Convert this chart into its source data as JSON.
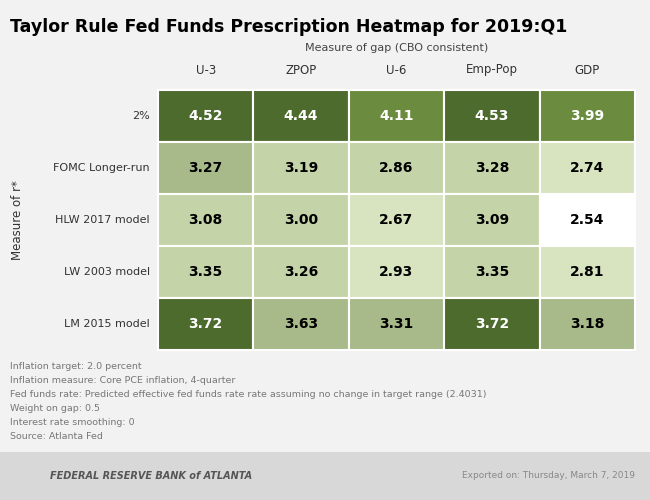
{
  "title": "Taylor Rule Fed Funds Prescription Heatmap for 2019:Q1",
  "col_header_label": "Measure of gap (CBO consistent)",
  "row_header_label": "Measure of r*",
  "columns": [
    "U-3",
    "ZPOP",
    "U-6",
    "Emp-Pop",
    "GDP"
  ],
  "rows": [
    "2%",
    "FOMC Longer-run",
    "HLW 2017 model",
    "LW 2003 model",
    "LM 2015 model"
  ],
  "values": [
    [
      4.52,
      4.44,
      4.11,
      4.53,
      3.99
    ],
    [
      3.27,
      3.19,
      2.86,
      3.28,
      2.74
    ],
    [
      3.08,
      3.0,
      2.67,
      3.09,
      2.54
    ],
    [
      3.35,
      3.26,
      2.93,
      3.35,
      2.81
    ],
    [
      3.72,
      3.63,
      3.31,
      3.72,
      3.18
    ]
  ],
  "cell_colors": [
    [
      "#4e6b2e",
      "#4e6b2e",
      "#6b8c3e",
      "#4e6b2e",
      "#6b8c3e"
    ],
    [
      "#a8ba8a",
      "#c5d4a8",
      "#c5d4a8",
      "#c5d4a8",
      "#d8e4c0"
    ],
    [
      "#c5d4a8",
      "#c5d4a8",
      "#d8e4c0",
      "#c5d4a8",
      "#ffffff"
    ],
    [
      "#c5d4a8",
      "#c5d4a8",
      "#d8e4c0",
      "#c5d4a8",
      "#d8e4c0"
    ],
    [
      "#4e6b2e",
      "#a8ba8a",
      "#a8ba8a",
      "#4e6b2e",
      "#a8ba8a"
    ]
  ],
  "text_colors": [
    [
      "#ffffff",
      "#ffffff",
      "#ffffff",
      "#ffffff",
      "#ffffff"
    ],
    [
      "#000000",
      "#000000",
      "#000000",
      "#000000",
      "#000000"
    ],
    [
      "#000000",
      "#000000",
      "#000000",
      "#000000",
      "#000000"
    ],
    [
      "#000000",
      "#000000",
      "#000000",
      "#000000",
      "#000000"
    ],
    [
      "#ffffff",
      "#000000",
      "#000000",
      "#ffffff",
      "#000000"
    ]
  ],
  "footnotes": [
    "Inflation target: 2.0 percent",
    "Inflation measure: Core PCE inflation, 4-quarter",
    "Fed funds rate: Predicted effective fed funds rate rate assuming no change in target range (2.4031)",
    "Weight on gap: 0.5",
    "Interest rate smoothing: 0",
    "Source: Atlanta Fed"
  ],
  "footer_left": "FEDERAL RESERVE BANK of ATLANTA",
  "footer_right": "Exported on: Thursday, March 7, 2019",
  "bg_color": "#f2f2f2",
  "footer_bg": "#d8d8d8",
  "title_color": "#000000",
  "footnote_color": "#777777"
}
